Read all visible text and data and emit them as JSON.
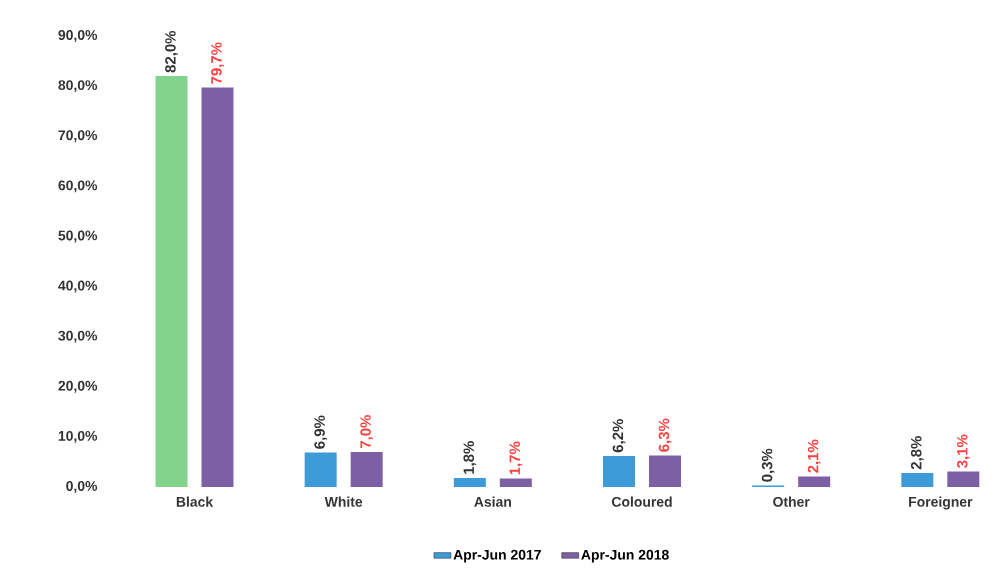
{
  "chart_data": {
    "type": "bar",
    "categories": [
      "Black",
      "White",
      "Asian",
      "Coloured",
      "Other",
      "Foreigner"
    ],
    "series": [
      {
        "name": "Apr-Jun 2017",
        "color": "#3d9cd8",
        "colors": [
          "#82d48c",
          "#3d9cd8",
          "#3d9cd8",
          "#3d9cd8",
          "#3d9cd8",
          "#3d9cd8"
        ],
        "values": [
          82.0,
          6.9,
          1.8,
          6.2,
          0.3,
          2.8
        ],
        "value_labels": [
          "82,0%",
          "6,9%",
          "1,8%",
          "6,2%",
          "0,3%",
          "2,8%"
        ]
      },
      {
        "name": "Apr-Jun 2018",
        "color": "#7d5fa6",
        "values": [
          79.7,
          7.0,
          1.7,
          6.3,
          2.1,
          3.1
        ],
        "value_labels": [
          "79,7%",
          "7,0%",
          "1,7%",
          "6,3%",
          "2,1%",
          "3,1%"
        ]
      }
    ],
    "ylim": [
      0,
      90
    ],
    "yticks": [
      {
        "value": 0,
        "label": "0,0%"
      },
      {
        "value": 10,
        "label": "10,0%"
      },
      {
        "value": 20,
        "label": "20,0%"
      },
      {
        "value": 30,
        "label": "30,0%"
      },
      {
        "value": 40,
        "label": "40,0%"
      },
      {
        "value": 50,
        "label": "50,0%"
      },
      {
        "value": 60,
        "label": "60,0%"
      },
      {
        "value": 70,
        "label": "70,0%"
      },
      {
        "value": 80,
        "label": "80,0%"
      },
      {
        "value": 90,
        "label": "90,0%"
      }
    ],
    "grid": false,
    "legend": "bottom"
  }
}
